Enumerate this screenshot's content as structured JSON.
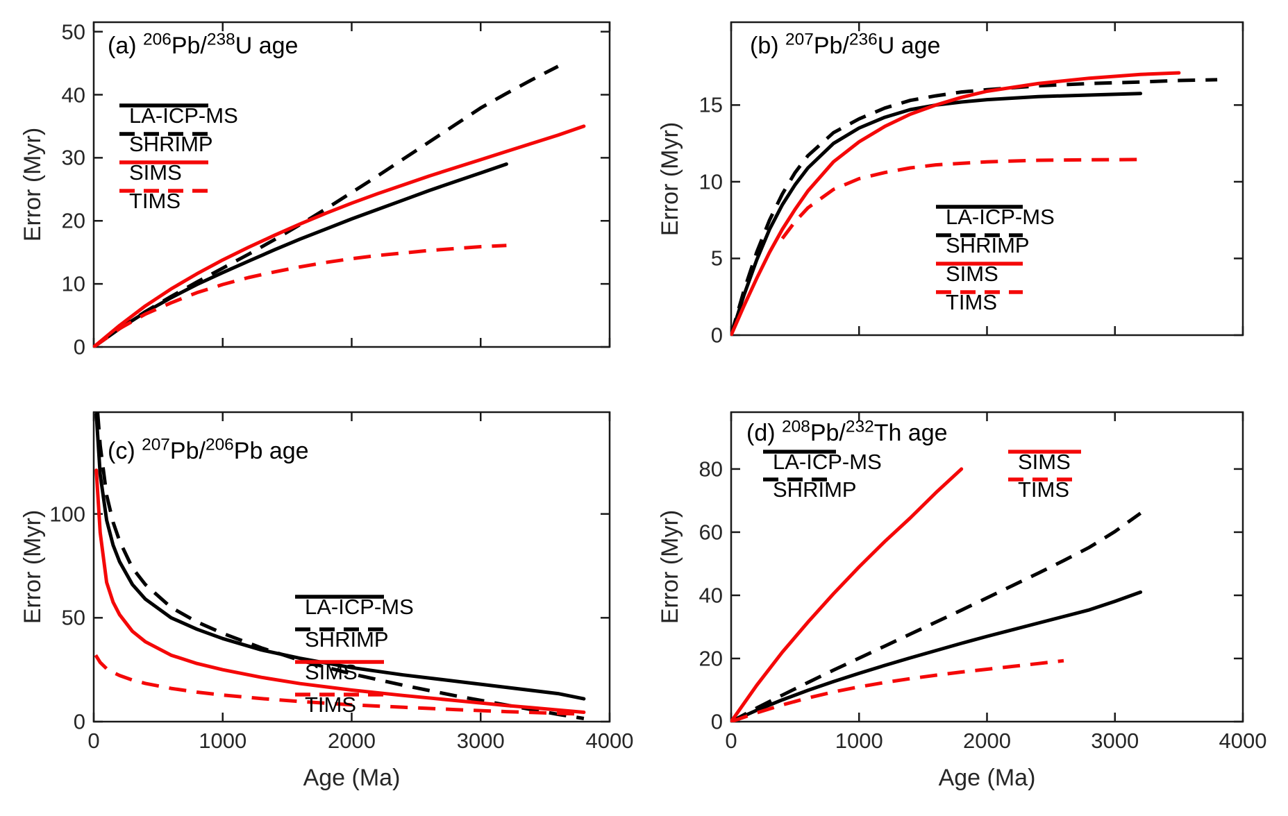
{
  "figure": {
    "background": "#ffffff"
  },
  "colors": {
    "black": "#000000",
    "red": "#f40808",
    "axis": "#1a1a1a",
    "tick_text": "#262626"
  },
  "chart_data": [
    {
      "id": "a",
      "type": "line",
      "title_segments": [
        {
          "text": "(a) "
        },
        {
          "text": "206",
          "sup": true
        },
        {
          "text": "Pb/"
        },
        {
          "text": "238",
          "sup": true
        },
        {
          "text": "U age"
        }
      ],
      "xlabel": "",
      "ylabel": "Error (Myr)",
      "xlim": [
        0,
        4000
      ],
      "ylim": [
        0,
        51.5
      ],
      "xticks": [
        0,
        1000,
        2000,
        3000,
        4000
      ],
      "yticks": [
        0,
        10,
        20,
        30,
        40,
        50
      ],
      "xtick_labels_visible": false,
      "grid": false,
      "legend_position": "upper-left",
      "series": [
        {
          "name": "LA-ICP-MS",
          "color": "black",
          "line": "solid",
          "x": [
            0,
            200,
            400,
            600,
            800,
            1000,
            1200,
            1400,
            1600,
            1800,
            2000,
            2200,
            2400,
            2600,
            2800,
            3000,
            3200
          ],
          "y": [
            0,
            2.9,
            5.5,
            7.8,
            9.9,
            11.8,
            13.6,
            15.4,
            17.1,
            18.7,
            20.3,
            21.8,
            23.3,
            24.8,
            26.2,
            27.6,
            29.0
          ]
        },
        {
          "name": "SHRIMP",
          "color": "black",
          "line": "dashed",
          "x": [
            0,
            200,
            400,
            600,
            800,
            1000,
            1200,
            1400,
            1600,
            1800,
            2000,
            2200,
            2400,
            2600,
            2800,
            3000,
            3200,
            3400,
            3600
          ],
          "y": [
            0,
            2.9,
            5.6,
            8.0,
            10.3,
            12.5,
            14.7,
            17.0,
            19.4,
            21.9,
            24.5,
            27.1,
            29.8,
            32.5,
            35.2,
            37.9,
            40.2,
            42.4,
            44.5
          ]
        },
        {
          "name": "SIMS",
          "color": "red",
          "line": "solid",
          "x": [
            0,
            200,
            400,
            600,
            800,
            1000,
            1200,
            1400,
            1600,
            1800,
            2000,
            2200,
            2400,
            2600,
            2800,
            3000,
            3200,
            3400,
            3600,
            3800
          ],
          "y": [
            0,
            3.4,
            6.5,
            9.2,
            11.6,
            13.8,
            15.8,
            17.7,
            19.5,
            21.2,
            22.8,
            24.3,
            25.7,
            27.1,
            28.4,
            29.7,
            31.0,
            32.3,
            33.6,
            35.0
          ]
        },
        {
          "name": "TIMS",
          "color": "red",
          "line": "dashed",
          "x": [
            0,
            200,
            400,
            600,
            800,
            1000,
            1200,
            1400,
            1600,
            1800,
            2000,
            2200,
            2400,
            2600,
            2800,
            3000,
            3200
          ],
          "y": [
            0,
            2.9,
            5.2,
            7.0,
            8.6,
            9.9,
            11.0,
            11.9,
            12.7,
            13.4,
            14.0,
            14.5,
            14.9,
            15.3,
            15.6,
            15.9,
            16.1
          ]
        }
      ]
    },
    {
      "id": "b",
      "type": "line",
      "title_segments": [
        {
          "text": "(b) "
        },
        {
          "text": "207",
          "sup": true
        },
        {
          "text": "Pb/"
        },
        {
          "text": "236",
          "sup": true
        },
        {
          "text": "U age"
        }
      ],
      "xlabel": "",
      "ylabel": "Error (Myr)",
      "xlim": [
        0,
        4000
      ],
      "ylim": [
        0,
        20.4
      ],
      "xticks": [
        0,
        1000,
        2000,
        3000,
        4000
      ],
      "yticks": [
        0,
        5,
        10,
        15
      ],
      "xtick_labels_visible": false,
      "grid": false,
      "legend_position": "middle-right",
      "series": [
        {
          "name": "LA-ICP-MS",
          "color": "black",
          "line": "solid",
          "x": [
            0,
            100,
            200,
            300,
            400,
            500,
            600,
            800,
            1000,
            1200,
            1400,
            1600,
            1800,
            2000,
            2400,
            2800,
            3200
          ],
          "y": [
            0,
            2.6,
            4.9,
            6.9,
            8.5,
            9.8,
            10.9,
            12.5,
            13.5,
            14.2,
            14.7,
            15.0,
            15.2,
            15.35,
            15.55,
            15.65,
            15.75
          ]
        },
        {
          "name": "SHRIMP",
          "color": "black",
          "line": "dashed",
          "x": [
            0,
            100,
            200,
            300,
            400,
            500,
            600,
            800,
            1000,
            1200,
            1400,
            1600,
            1800,
            2000,
            2400,
            2800,
            3200,
            3500,
            3800
          ],
          "y": [
            0,
            2.9,
            5.4,
            7.5,
            9.2,
            10.6,
            11.7,
            13.2,
            14.1,
            14.8,
            15.3,
            15.6,
            15.85,
            16.0,
            16.25,
            16.4,
            16.5,
            16.6,
            16.65
          ]
        },
        {
          "name": "SIMS",
          "color": "red",
          "line": "solid",
          "x": [
            0,
            100,
            200,
            300,
            400,
            500,
            600,
            800,
            1000,
            1200,
            1400,
            1600,
            1800,
            2000,
            2400,
            2800,
            3200,
            3500
          ],
          "y": [
            0,
            1.9,
            3.7,
            5.4,
            6.9,
            8.2,
            9.4,
            11.3,
            12.6,
            13.6,
            14.4,
            15.0,
            15.5,
            15.9,
            16.4,
            16.75,
            17.0,
            17.1
          ]
        },
        {
          "name": "TIMS",
          "color": "red",
          "line": "dashed",
          "x": [
            400,
            500,
            600,
            800,
            1000,
            1200,
            1400,
            1600,
            2000,
            2400,
            2800,
            3200
          ],
          "y": [
            6.3,
            7.4,
            8.3,
            9.5,
            10.2,
            10.6,
            10.9,
            11.1,
            11.3,
            11.4,
            11.43,
            11.45
          ]
        }
      ]
    },
    {
      "id": "c",
      "type": "line",
      "title_segments": [
        {
          "text": "(c) "
        },
        {
          "text": "207",
          "sup": true
        },
        {
          "text": "Pb/"
        },
        {
          "text": "206",
          "sup": true
        },
        {
          "text": "Pb age"
        }
      ],
      "xlabel": "Age (Ma)",
      "ylabel": "Error (Myr)",
      "xlim": [
        0,
        4000
      ],
      "ylim": [
        0,
        149
      ],
      "xticks": [
        0,
        1000,
        2000,
        3000,
        4000
      ],
      "yticks": [
        0,
        50,
        100
      ],
      "xtick_labels_visible": true,
      "grid": false,
      "legend_position": "middle-right",
      "series": [
        {
          "name": "LA-ICP-MS",
          "color": "black",
          "line": "solid",
          "x": [
            20,
            50,
            100,
            150,
            200,
            300,
            400,
            600,
            800,
            1000,
            1300,
            1600,
            2000,
            2400,
            2800,
            3200,
            3600,
            3800
          ],
          "y": [
            148,
            119,
            97,
            85,
            77,
            66,
            59,
            50,
            44.5,
            40,
            34.5,
            30.5,
            26,
            22.5,
            19.5,
            16.5,
            13.5,
            11
          ]
        },
        {
          "name": "SHRIMP",
          "color": "black",
          "line": "dashed",
          "x": [
            30,
            50,
            100,
            150,
            200,
            300,
            400,
            600,
            800,
            1000,
            1300,
            1600,
            2000,
            2400,
            2800,
            3200,
            3600,
            3800
          ],
          "y": [
            149,
            133,
            109,
            96,
            87,
            74,
            66,
            55,
            48,
            42.5,
            35.5,
            29.5,
            23,
            17.5,
            12.5,
            8,
            3.5,
            1.5
          ]
        },
        {
          "name": "SIMS",
          "color": "red",
          "line": "solid",
          "x": [
            20,
            50,
            100,
            150,
            200,
            300,
            400,
            600,
            800,
            1000,
            1300,
            1600,
            2000,
            2400,
            2800,
            3200,
            3600,
            3800
          ],
          "y": [
            121,
            91,
            67,
            57.5,
            51.5,
            43.5,
            38.5,
            32,
            28,
            25,
            21.3,
            18.3,
            15.2,
            12.6,
            10.2,
            7.8,
            5.6,
            4.5
          ]
        },
        {
          "name": "TIMS",
          "color": "red",
          "line": "dashed",
          "x": [
            15,
            50,
            100,
            150,
            200,
            300,
            400,
            600,
            800,
            1000,
            1300,
            1600,
            2000,
            2400,
            2800,
            3200,
            3600,
            3800
          ],
          "y": [
            32,
            28.5,
            25.5,
            23.7,
            22.2,
            20,
            18.4,
            16,
            14.2,
            12.8,
            11.1,
            9.7,
            8.1,
            6.9,
            5.8,
            4.8,
            4,
            3.6
          ]
        }
      ]
    },
    {
      "id": "d",
      "type": "line",
      "title_segments": [
        {
          "text": "(d) "
        },
        {
          "text": "208",
          "sup": true
        },
        {
          "text": "Pb/"
        },
        {
          "text": "232",
          "sup": true
        },
        {
          "text": "Th age"
        }
      ],
      "xlabel": "Age (Ma)",
      "ylabel": "Error (Myr)",
      "xlim": [
        0,
        4000
      ],
      "ylim": [
        0,
        98
      ],
      "xticks": [
        0,
        1000,
        2000,
        3000,
        4000
      ],
      "yticks": [
        0,
        20,
        40,
        60,
        80
      ],
      "xtick_labels_visible": true,
      "grid": false,
      "legend_position": "top-two-columns",
      "series": [
        {
          "name": "LA-ICP-MS",
          "color": "black",
          "line": "solid",
          "x": [
            0,
            200,
            400,
            600,
            800,
            1000,
            1200,
            1400,
            1600,
            1800,
            2000,
            2200,
            2400,
            2600,
            2800,
            3000,
            3200
          ],
          "y": [
            0,
            3.6,
            6.9,
            9.9,
            12.7,
            15.3,
            17.8,
            20.2,
            22.5,
            24.8,
            27,
            29.1,
            31.2,
            33.3,
            35.4,
            38.1,
            41
          ]
        },
        {
          "name": "SHRIMP",
          "color": "black",
          "line": "dashed",
          "x": [
            0,
            200,
            400,
            600,
            800,
            1000,
            1200,
            1400,
            1600,
            1800,
            2000,
            2200,
            2400,
            2600,
            2800,
            3000,
            3200
          ],
          "y": [
            0,
            4.3,
            8.4,
            12.4,
            16.3,
            20.1,
            23.9,
            27.7,
            31.5,
            35.3,
            39.2,
            43.1,
            47,
            51,
            55.2,
            60.2,
            66
          ]
        },
        {
          "name": "SIMS",
          "color": "red",
          "line": "solid",
          "x": [
            0,
            200,
            400,
            600,
            800,
            1000,
            1200,
            1400,
            1600,
            1800
          ],
          "y": [
            0,
            11.5,
            22,
            31.5,
            40.5,
            49,
            57,
            64.5,
            72.5,
            80
          ]
        },
        {
          "name": "TIMS",
          "color": "red",
          "line": "dashed",
          "x": [
            0,
            200,
            400,
            600,
            800,
            1000,
            1200,
            1400,
            1600,
            1800,
            2000,
            2200,
            2400,
            2600
          ],
          "y": [
            0,
            2.8,
            5.3,
            7.5,
            9.4,
            11,
            12.4,
            13.6,
            14.7,
            15.7,
            16.6,
            17.5,
            18.4,
            19.3
          ]
        }
      ]
    }
  ]
}
